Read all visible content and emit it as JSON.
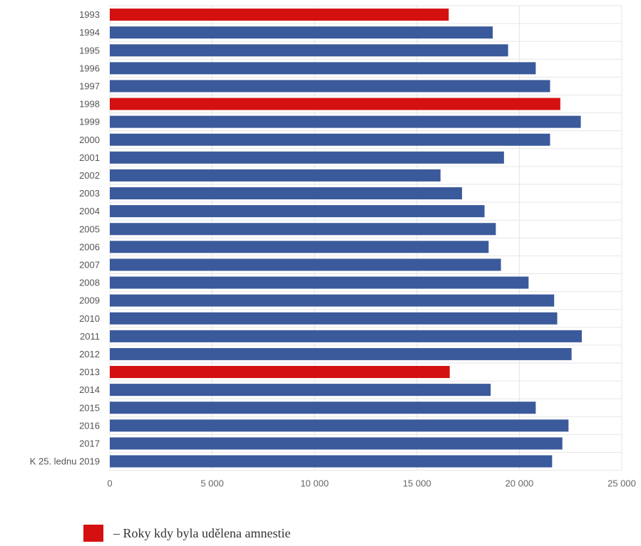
{
  "chart_data": {
    "type": "bar",
    "orientation": "horizontal",
    "categories": [
      "1993",
      "1994",
      "1995",
      "1996",
      "1997",
      "1998",
      "1999",
      "2000",
      "2001",
      "2002",
      "2003",
      "2004",
      "2005",
      "2006",
      "2007",
      "2008",
      "2009",
      "2010",
      "2011",
      "2012",
      "2013",
      "2014",
      "2015",
      "2016",
      "2017",
      "K 25. lednu 2019"
    ],
    "values": [
      16550,
      18700,
      19450,
      20800,
      21500,
      22000,
      23000,
      21500,
      19250,
      16150,
      17200,
      18300,
      18850,
      18500,
      19100,
      20450,
      21700,
      21850,
      23050,
      22550,
      16600,
      18600,
      20800,
      22400,
      22100,
      21600
    ],
    "highlight": [
      true,
      false,
      false,
      false,
      false,
      true,
      false,
      false,
      false,
      false,
      false,
      false,
      false,
      false,
      false,
      false,
      false,
      false,
      false,
      false,
      true,
      false,
      false,
      false,
      false,
      false
    ],
    "colors": {
      "normal": "#3b5a9b",
      "highlight": "#d41010",
      "grid": "#e6e6e6"
    },
    "xlim": [
      0,
      25000
    ],
    "x_ticks": [
      0,
      5000,
      10000,
      15000,
      20000,
      25000
    ],
    "x_tick_labels": [
      "0",
      "5 000",
      "10 000",
      "15 000",
      "20 000",
      "25 000"
    ],
    "grid": true,
    "legend": [
      {
        "color": "#d41010",
        "label": "– Roky kdy byla udělena amnestie"
      }
    ]
  }
}
